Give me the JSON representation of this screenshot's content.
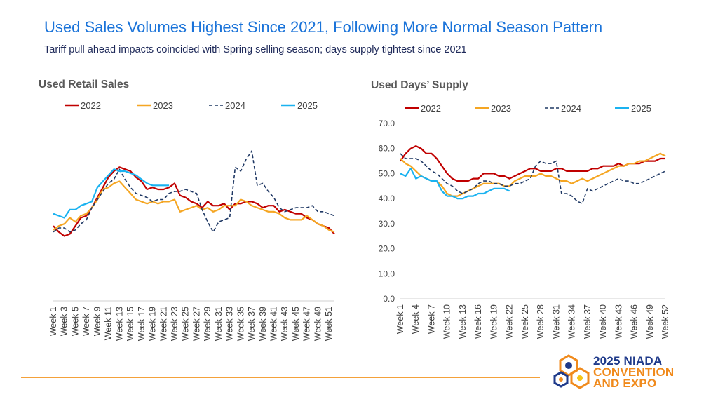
{
  "header": {
    "title": "Used Sales Volumes Highest Since 2021, Following More Normal Season Pattern",
    "subtitle": "Tariff pull ahead impacts coincided with Spring selling season; days supply tightest since 2021"
  },
  "colors": {
    "2022": "#c00000",
    "2023": "#f5a623",
    "2024": "#1f3864",
    "2025": "#1ab2f0",
    "title": "#1a73d9",
    "rule": "#f4a13a"
  },
  "logo": {
    "line1": "2025 NIADA",
    "line2": "CONVENTION",
    "line3": "AND EXPO",
    "icon": "hexagon-molecule-icon"
  },
  "chart_data": [
    {
      "type": "line",
      "title": "Used Retail Sales",
      "xlabel": "",
      "ylabel": "",
      "y_axis_labels_shown": false,
      "ylim": [
        0,
        100
      ],
      "legend_position": "top",
      "tick_labels": [
        "Week 1",
        "Week 3",
        "Week 5",
        "Week 7",
        "Week 9",
        "Week 11",
        "Week 13",
        "Week 15",
        "Week 17",
        "Week 19",
        "Week 21",
        "Week 23",
        "Week 25",
        "Week 27",
        "Week 29",
        "Week 31",
        "Week 33",
        "Week 35",
        "Week 37",
        "Week 39",
        "Week 41",
        "Week 43",
        "Week 45",
        "Week 47",
        "Week 49",
        "Week 51"
      ],
      "series": [
        {
          "name": "2022",
          "style": "solid",
          "values": [
            37,
            34,
            32,
            33,
            37,
            41,
            42,
            46,
            51,
            56,
            61,
            64,
            66,
            65,
            64,
            61,
            59,
            55,
            56,
            55,
            55,
            56,
            58,
            52,
            51,
            49,
            48,
            46,
            49,
            47,
            47,
            48,
            45,
            48,
            48,
            49,
            49,
            48,
            46,
            47,
            47,
            44,
            45,
            44,
            43,
            43,
            41,
            40,
            38,
            37,
            36,
            33
          ]
        },
        {
          "name": "2023",
          "style": "solid",
          "values": [
            35,
            37,
            38,
            41,
            39,
            42,
            43,
            46,
            50,
            55,
            56,
            58,
            59,
            56,
            53,
            50,
            49,
            48,
            49,
            48,
            49,
            49,
            50,
            44,
            45,
            46,
            47,
            45,
            46,
            44,
            45,
            47,
            47,
            47,
            50,
            49,
            47,
            46,
            45,
            44,
            44,
            43,
            41,
            40,
            40,
            40,
            42,
            40,
            38,
            37,
            35,
            34
          ]
        },
        {
          "name": "2024",
          "style": "dashed",
          "values": [
            34,
            36,
            36,
            34,
            35,
            38,
            40,
            46,
            50,
            54,
            58,
            60,
            65,
            60,
            56,
            53,
            52,
            51,
            49,
            50,
            50,
            53,
            54,
            54,
            55,
            54,
            53,
            45,
            39,
            34,
            39,
            40,
            41,
            66,
            64,
            70,
            74,
            57,
            58,
            54,
            51,
            46,
            44,
            45,
            46,
            46,
            46,
            47,
            44,
            44,
            43,
            42
          ]
        },
        {
          "name": "2025",
          "style": "solid",
          "values": [
            43,
            42,
            41,
            45,
            45,
            47,
            48,
            49,
            56,
            59,
            62,
            65,
            64,
            64,
            63,
            62,
            60,
            58,
            57,
            57,
            57,
            57
          ]
        }
      ]
    },
    {
      "type": "line",
      "title": "Used Days’ Supply",
      "xlabel": "",
      "ylabel": "",
      "ylim": [
        0,
        70
      ],
      "yticks": [
        "0.0",
        "10.0",
        "20.0",
        "30.0",
        "40.0",
        "50.0",
        "60.0",
        "70.0"
      ],
      "legend_position": "top",
      "tick_labels": [
        "Week 1",
        "Week 4",
        "Week 7",
        "Week 10",
        "Week 13",
        "Week 16",
        "Week 19",
        "Week 22",
        "Week 25",
        "Week 28",
        "Week 31",
        "Week 34",
        "Week 37",
        "Week 40",
        "Week 43",
        "Week 46",
        "Week 49",
        "Week 52"
      ],
      "series": [
        {
          "name": "2022",
          "style": "solid",
          "values": [
            55,
            58,
            60,
            61,
            60,
            58,
            58,
            56,
            53,
            50,
            48,
            47,
            47,
            47,
            48,
            48,
            50,
            50,
            50,
            49,
            49,
            48,
            49,
            50,
            51,
            52,
            52,
            51,
            51,
            51,
            52,
            52,
            51,
            51,
            51,
            51,
            51,
            52,
            52,
            53,
            53,
            53,
            54,
            53,
            54,
            54,
            54,
            55,
            55,
            55,
            56,
            56
          ]
        },
        {
          "name": "2023",
          "style": "solid",
          "values": [
            56,
            54,
            53,
            51,
            49,
            48,
            47,
            47,
            45,
            42,
            41,
            41,
            42,
            43,
            44,
            45,
            46,
            46,
            46,
            46,
            45,
            45,
            47,
            48,
            49,
            49,
            49,
            50,
            49,
            49,
            48,
            47,
            47,
            46,
            47,
            48,
            47,
            48,
            49,
            50,
            51,
            52,
            53,
            53,
            54,
            54,
            55,
            55,
            56,
            57,
            58,
            57
          ]
        },
        {
          "name": "2024",
          "style": "dashed",
          "values": [
            58,
            56,
            56,
            56,
            55,
            53,
            51,
            50,
            48,
            46,
            45,
            43,
            42,
            43,
            44,
            46,
            47,
            47,
            46,
            46,
            45,
            45,
            46,
            46,
            47,
            48,
            53,
            55,
            54,
            54,
            55,
            42,
            42,
            41,
            39,
            38,
            44,
            43,
            44,
            45,
            46,
            47,
            48,
            47,
            47,
            46,
            46,
            47,
            48,
            49,
            50,
            51
          ]
        },
        {
          "name": "2025",
          "style": "solid",
          "values": [
            50,
            49,
            52,
            48,
            49,
            48,
            47,
            47,
            43,
            41,
            41,
            40,
            40,
            41,
            41,
            42,
            42,
            43,
            44,
            44,
            44,
            43
          ]
        }
      ]
    }
  ]
}
